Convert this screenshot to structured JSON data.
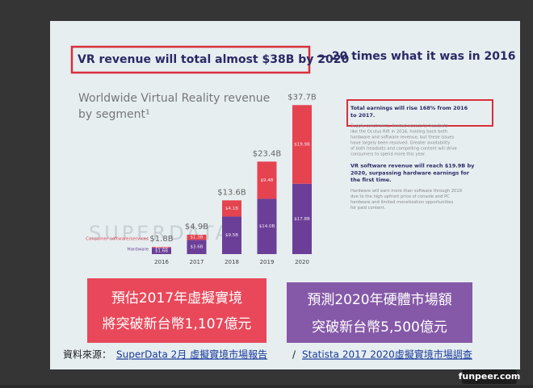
{
  "headline": {
    "boxed": "VR revenue will total almost $38B by 2020",
    "rest": "— 20 times what it was in 2016"
  },
  "chart_data": {
    "type": "stacked_bar",
    "title": [
      "Worldwide Virtual Reality revenue",
      "by segment¹"
    ],
    "watermark": "SUPERDATA",
    "categories": [
      "2016",
      "2017",
      "2018",
      "2019",
      "2020"
    ],
    "series": [
      {
        "name": "Hardware",
        "color": "#6b3f98",
        "values": [
          1.6,
          3.6,
          9.5,
          14.0,
          17.8
        ],
        "value_labels": [
          "$1.6B",
          "$3.6B",
          "$9.5B",
          "$14.0B",
          "$17.8B"
        ]
      },
      {
        "name": "Consumer software/services",
        "color": "#e5434f",
        "values": [
          0.2,
          1.3,
          4.1,
          9.4,
          19.9
        ],
        "value_labels": [
          "$0.2B",
          "$1.3B",
          "$4.1B",
          "$9.4B",
          "$19.9B"
        ]
      }
    ],
    "totals": {
      "values": [
        1.8,
        4.9,
        13.6,
        23.4,
        37.7
      ],
      "value_labels": [
        "$1.8B",
        "$4.9B",
        "$13.6B",
        "$23.4B",
        "$37.7B"
      ]
    }
  },
  "notes": [
    {
      "highlight": "Total earnings will rise 168% from 2016 to 2017.",
      "body": "Supply constraints, limited access to headsets like the Oculus Rift in 2016, holding back both hardware and software revenue, but these issues have largely been resolved. Greater availability of both headsets and compelling content will drive consumers to spend more this year."
    },
    {
      "highlight": "VR software revenue will reach $19.9B by 2020, surpassing hardware earnings for the first time.",
      "body": "Hardware will earn more than software through 2019 due to the high upfront price of console and PC hardware and limited monetization opportunities for paid content."
    }
  ],
  "callouts": [
    {
      "lines": [
        "預估2017年虛擬實境",
        "將突破新台幣1,107億元"
      ]
    },
    {
      "lines": [
        "預測2020年硬體市場額",
        "突破新台幣5,500億元"
      ]
    }
  ],
  "source": {
    "label": "資料來源：",
    "link1": "SuperData 2月 虛擬實境市場報告",
    "sep": "/",
    "link2": "Statista 2017 2020虛擬實境市場調查"
  },
  "site": "funpeer.com"
}
